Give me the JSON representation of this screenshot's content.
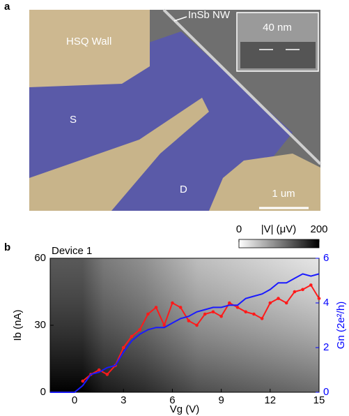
{
  "panels": {
    "a": "a",
    "b": "b"
  },
  "image_labels": {
    "wall": "HSQ Wall",
    "nanowire": "InSb NW",
    "inset": "40 nm",
    "source": "S",
    "drain": "D",
    "scale_bar": "1 um"
  },
  "colorbar": {
    "label": "|V| (μV)",
    "lim": [
      0,
      200
    ],
    "ticks": [
      0,
      200
    ]
  },
  "chart_data": {
    "type": "line",
    "title": "Device 1",
    "x_label": "Vg (V)",
    "y_label": "Ib (nA)",
    "y2_label": "Gn (2e²/h)",
    "x": [
      -1.5,
      -1,
      -0.5,
      0,
      0.5,
      1,
      1.5,
      2,
      2.5,
      3,
      3.5,
      4,
      4.5,
      5,
      5.5,
      6,
      6.5,
      7,
      7.5,
      8,
      8.5,
      9,
      9.5,
      10,
      10.5,
      11,
      11.5,
      12,
      12.5,
      13,
      13.5,
      14,
      14.5,
      15
    ],
    "xlim": [
      -1.5,
      15
    ],
    "xticks": [
      0,
      3,
      6,
      9,
      12,
      15
    ],
    "ylim": [
      0,
      60
    ],
    "yticks": [
      0,
      30,
      60
    ],
    "y2lim": [
      0,
      6
    ],
    "y2ticks": [
      0,
      2,
      4,
      6
    ],
    "series": [
      {
        "color": "#ff1a1a",
        "values": [
          null,
          null,
          null,
          null,
          5,
          8,
          10,
          8,
          12,
          20,
          25,
          28,
          35,
          38,
          30,
          40,
          38,
          32,
          30,
          35,
          36,
          34,
          40,
          38,
          36,
          35,
          33,
          40,
          42,
          40,
          45,
          46,
          48,
          42
        ]
      },
      {
        "color": "#1a1aff",
        "axis": "y2",
        "values": [
          0,
          0,
          0,
          0,
          0.3,
          0.8,
          0.9,
          1.1,
          1.2,
          1.8,
          2.3,
          2.6,
          2.8,
          2.9,
          2.9,
          3.1,
          3.3,
          3.4,
          3.6,
          3.7,
          3.8,
          3.8,
          3.9,
          3.9,
          4.2,
          4.3,
          4.4,
          4.6,
          4.9,
          4.9,
          5.1,
          5.3,
          5.2,
          5.3
        ]
      }
    ]
  }
}
